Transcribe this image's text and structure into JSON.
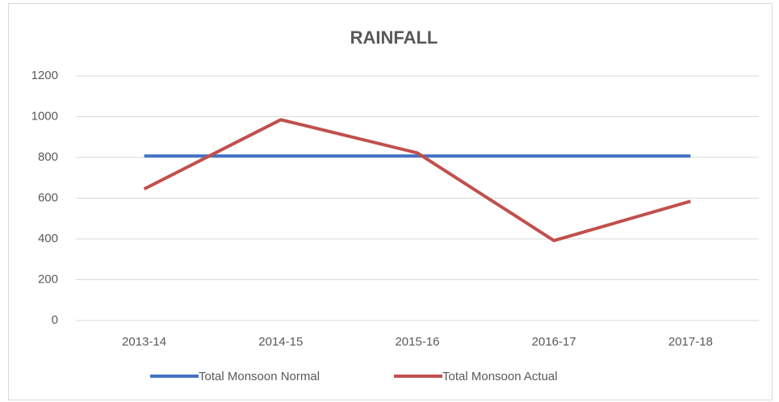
{
  "chart_data": {
    "type": "line",
    "title": "RAINFALL",
    "categories": [
      "2013-14",
      "2014-15",
      "2015-16",
      "2016-17",
      "2017-18"
    ],
    "series": [
      {
        "name": "Total Monsoon Normal",
        "color": "#4472c4",
        "values": [
          807,
          807,
          807,
          807,
          807
        ]
      },
      {
        "name": "Total Monsoon Actual",
        "color": "#c0504d",
        "values": [
          645,
          985,
          822,
          392,
          585
        ]
      }
    ],
    "ylim": [
      0,
      1200
    ],
    "yticks": [
      0,
      200,
      400,
      600,
      800,
      1000,
      1200
    ],
    "grid": true,
    "legend": "bottom"
  }
}
